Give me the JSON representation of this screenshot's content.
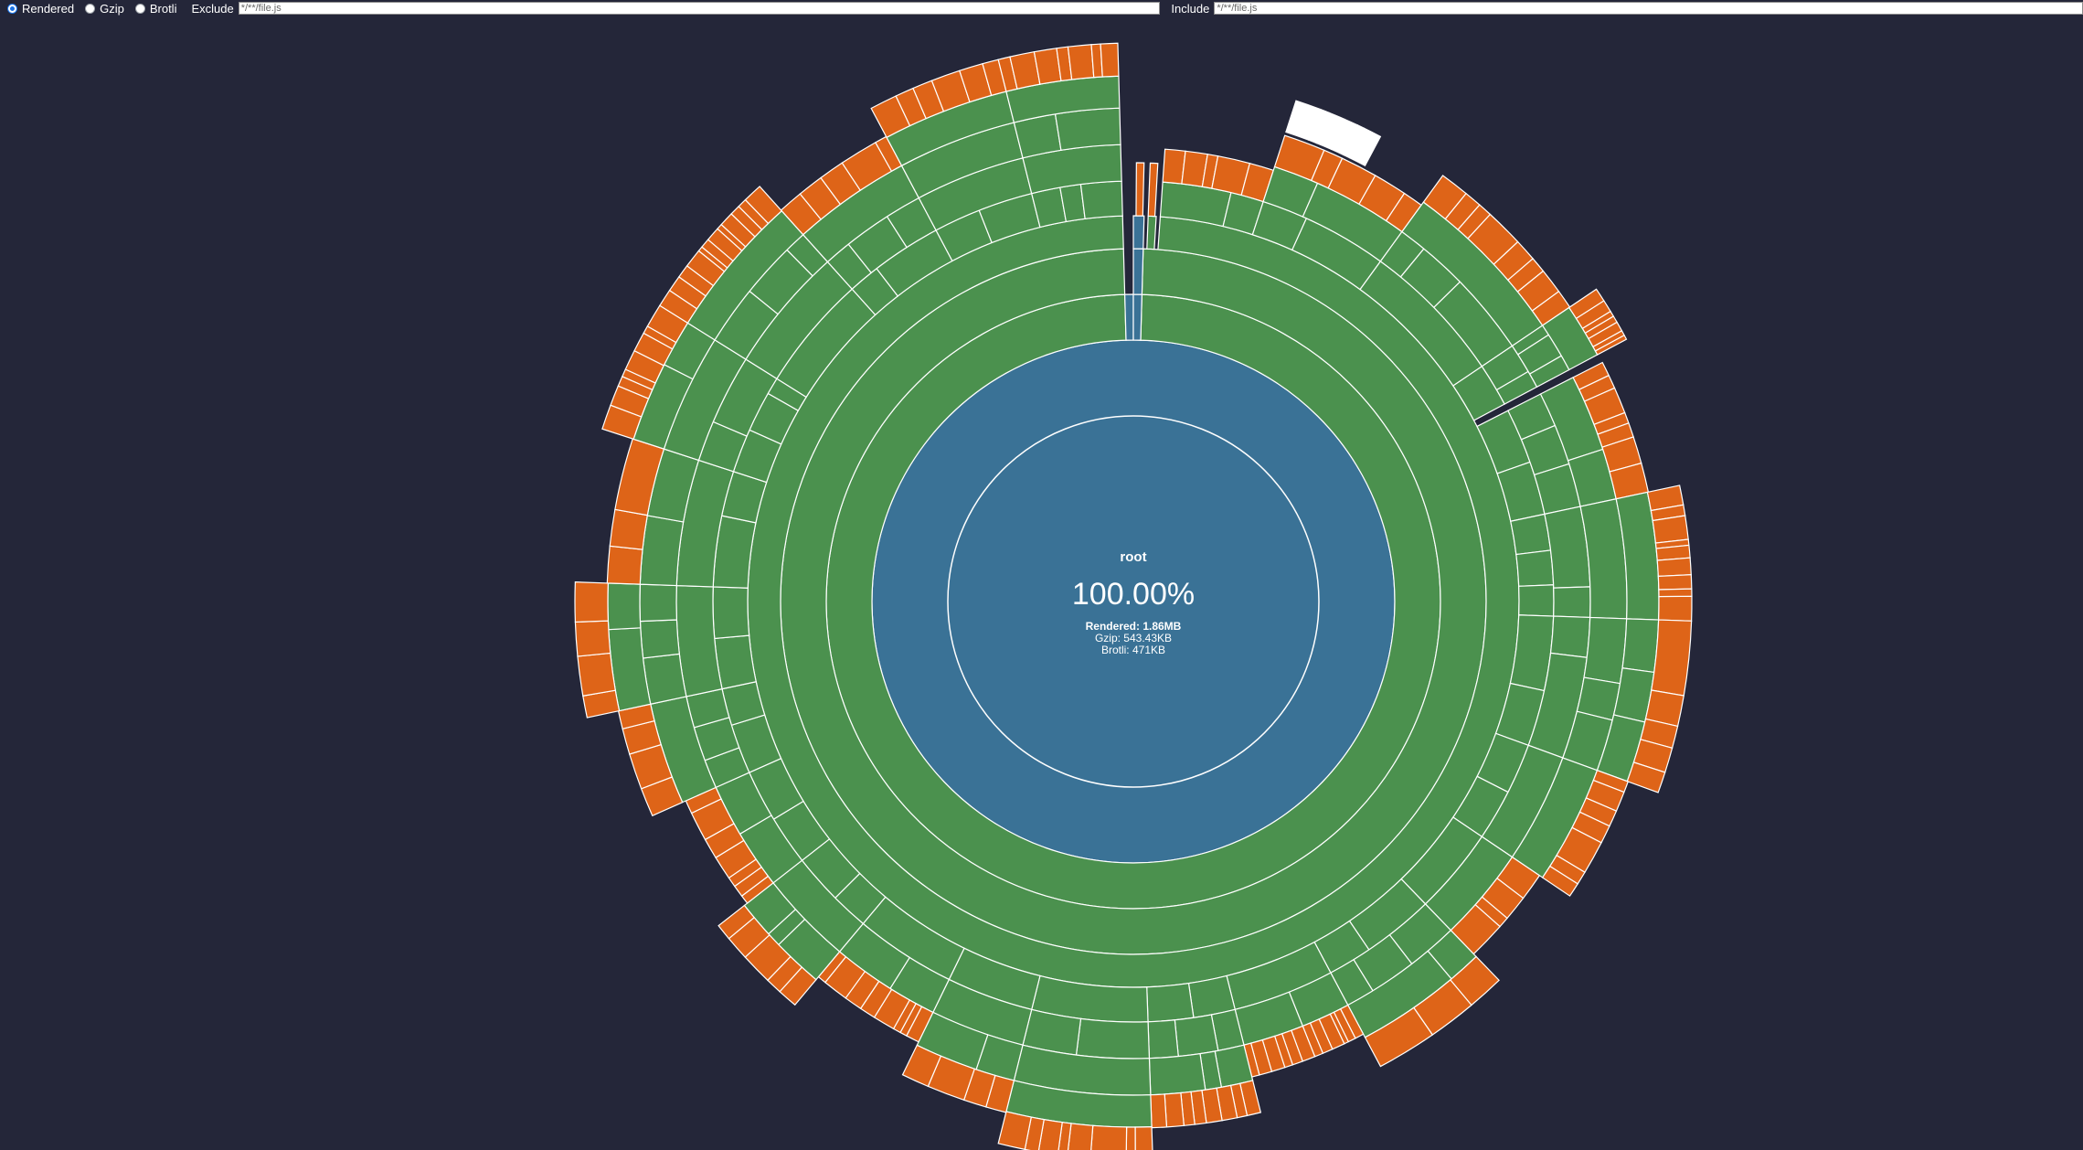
{
  "toolbar": {
    "size_modes": [
      {
        "label": "Rendered",
        "checked": true
      },
      {
        "label": "Gzip",
        "checked": false
      },
      {
        "label": "Brotli",
        "checked": false
      }
    ],
    "exclude_label": "Exclude",
    "exclude_placeholder": "*/**/file.js",
    "include_label": "Include",
    "include_placeholder": "*/**/file.js"
  },
  "sunburst": {
    "root_name": "root",
    "percent": "100.00%",
    "rendered": "Rendered: 1.86MB",
    "gzip": "Gzip: 543.43KB",
    "brotli": "Brotli: 471KB"
  },
  "colors": {
    "background": "#242639",
    "root": "#3a7296",
    "directory": "#4b914e",
    "file": "#de6418",
    "selected": "#ffffff"
  }
}
